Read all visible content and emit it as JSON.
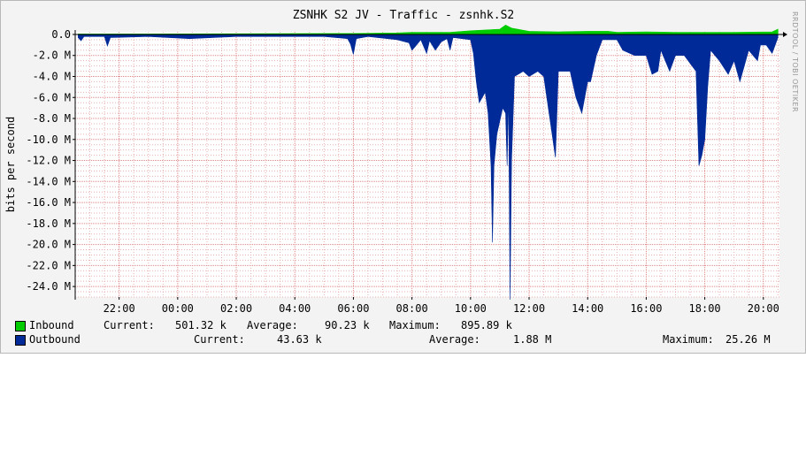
{
  "chart_data": {
    "type": "area",
    "title": "ZSNHK S2 JV - Traffic - zsnhk.S2",
    "ylabel": "bits per second",
    "xlabel": "",
    "y_unit": "M",
    "ylim": [
      -25,
      0.25
    ],
    "y_ticks": [
      {
        "value": 0,
        "label": "0.0"
      },
      {
        "value": -2,
        "label": "-2.0 M"
      },
      {
        "value": -4,
        "label": "-4.0 M"
      },
      {
        "value": -6,
        "label": "-6.0 M"
      },
      {
        "value": -8,
        "label": "-8.0 M"
      },
      {
        "value": -10,
        "label": "-10.0 M"
      },
      {
        "value": -12,
        "label": "-12.0 M"
      },
      {
        "value": -14,
        "label": "-14.0 M"
      },
      {
        "value": -16,
        "label": "-16.0 M"
      },
      {
        "value": -18,
        "label": "-18.0 M"
      },
      {
        "value": -20,
        "label": "-20.0 M"
      },
      {
        "value": -22,
        "label": "-22.0 M"
      },
      {
        "value": -24,
        "label": "-24.0 M"
      }
    ],
    "x_range_hours": [
      20.5,
      44.55
    ],
    "x_ticks": [
      {
        "hour": 22,
        "label": "22:00"
      },
      {
        "hour": 24,
        "label": "00:00"
      },
      {
        "hour": 26,
        "label": "02:00"
      },
      {
        "hour": 28,
        "label": "04:00"
      },
      {
        "hour": 30,
        "label": "06:00"
      },
      {
        "hour": 32,
        "label": "08:00"
      },
      {
        "hour": 34,
        "label": "10:00"
      },
      {
        "hour": 36,
        "label": "12:00"
      },
      {
        "hour": 38,
        "label": "14:00"
      },
      {
        "hour": 40,
        "label": "16:00"
      },
      {
        "hour": 42,
        "label": "18:00"
      },
      {
        "hour": 44,
        "label": "20:00"
      }
    ],
    "grid": true,
    "series": [
      {
        "name": "Inbound",
        "color": "#00cc00",
        "points": [
          [
            20.6,
            0.05
          ],
          [
            23.0,
            0.05
          ],
          [
            30.0,
            0.1
          ],
          [
            31.5,
            0.15
          ],
          [
            32.0,
            0.2
          ],
          [
            33.3,
            0.2
          ],
          [
            34.0,
            0.35
          ],
          [
            35.0,
            0.5
          ],
          [
            35.2,
            0.9
          ],
          [
            35.4,
            0.6
          ],
          [
            36.0,
            0.3
          ],
          [
            37.0,
            0.25
          ],
          [
            38.0,
            0.3
          ],
          [
            38.7,
            0.3
          ],
          [
            39.0,
            0.2
          ],
          [
            40.0,
            0.25
          ],
          [
            41.0,
            0.2
          ],
          [
            42.0,
            0.2
          ],
          [
            43.0,
            0.2
          ],
          [
            44.3,
            0.25
          ],
          [
            44.5,
            0.5
          ]
        ]
      },
      {
        "name": "Outbound",
        "color": "#002a97",
        "points": [
          [
            20.6,
            -0.3
          ],
          [
            20.7,
            -0.6
          ],
          [
            20.8,
            -0.2
          ],
          [
            21.5,
            -0.2
          ],
          [
            21.6,
            -1.1
          ],
          [
            21.7,
            -0.3
          ],
          [
            23.0,
            -0.2
          ],
          [
            24.4,
            -0.4
          ],
          [
            26.0,
            -0.2
          ],
          [
            29.0,
            -0.2
          ],
          [
            29.8,
            -0.4
          ],
          [
            29.9,
            -0.9
          ],
          [
            30.0,
            -1.9
          ],
          [
            30.1,
            -0.4
          ],
          [
            30.5,
            -0.2
          ],
          [
            31.5,
            -0.5
          ],
          [
            31.9,
            -0.8
          ],
          [
            32.0,
            -1.5
          ],
          [
            32.1,
            -1.2
          ],
          [
            32.3,
            -0.5
          ],
          [
            32.5,
            -1.8
          ],
          [
            32.6,
            -0.6
          ],
          [
            32.8,
            -1.5
          ],
          [
            33.0,
            -0.7
          ],
          [
            33.2,
            -0.4
          ],
          [
            33.3,
            -1.5
          ],
          [
            33.4,
            -0.3
          ],
          [
            34.0,
            -0.5
          ],
          [
            34.1,
            -1.8
          ],
          [
            34.2,
            -4.5
          ],
          [
            34.3,
            -6.5
          ],
          [
            34.5,
            -5.5
          ],
          [
            34.6,
            -7.5
          ],
          [
            34.7,
            -12.5
          ],
          [
            34.75,
            -19.8
          ],
          [
            34.8,
            -12.5
          ],
          [
            34.9,
            -9.5
          ],
          [
            35.1,
            -7.0
          ],
          [
            35.2,
            -7.5
          ],
          [
            35.25,
            -12.5
          ],
          [
            35.3,
            -5.5
          ],
          [
            35.35,
            -25.25
          ],
          [
            35.4,
            -12.0
          ],
          [
            35.5,
            -4.0
          ],
          [
            35.8,
            -3.5
          ],
          [
            36.0,
            -4.0
          ],
          [
            36.3,
            -3.5
          ],
          [
            36.5,
            -4.0
          ],
          [
            36.9,
            -11.7
          ],
          [
            37.0,
            -3.5
          ],
          [
            37.4,
            -3.5
          ],
          [
            37.6,
            -6.0
          ],
          [
            37.8,
            -7.5
          ],
          [
            37.9,
            -6.0
          ],
          [
            38.0,
            -4.5
          ],
          [
            38.1,
            -4.5
          ],
          [
            38.3,
            -2.0
          ],
          [
            38.5,
            -0.5
          ],
          [
            39.0,
            -0.5
          ],
          [
            39.2,
            -1.5
          ],
          [
            39.6,
            -2.0
          ],
          [
            40.0,
            -2.0
          ],
          [
            40.2,
            -3.8
          ],
          [
            40.4,
            -3.5
          ],
          [
            40.5,
            -1.5
          ],
          [
            40.8,
            -3.5
          ],
          [
            41.0,
            -2.0
          ],
          [
            41.3,
            -2.0
          ],
          [
            41.7,
            -3.5
          ],
          [
            41.8,
            -12.5
          ],
          [
            41.9,
            -11.5
          ],
          [
            42.0,
            -10.0
          ],
          [
            42.1,
            -5.0
          ],
          [
            42.2,
            -1.5
          ],
          [
            42.5,
            -2.5
          ],
          [
            42.8,
            -3.8
          ],
          [
            43.0,
            -2.5
          ],
          [
            43.2,
            -4.5
          ],
          [
            43.5,
            -1.5
          ],
          [
            43.8,
            -2.5
          ],
          [
            43.9,
            -1.0
          ],
          [
            44.1,
            -1.0
          ],
          [
            44.3,
            -1.8
          ],
          [
            44.5,
            -0.3
          ]
        ]
      }
    ]
  },
  "legend": {
    "inbound": {
      "name": "Inbound",
      "current_label": "Current:",
      "current": "501.32 k",
      "average_label": "Average:",
      "average": "90.23 k",
      "maximum_label": "Maximum:",
      "maximum": "895.89 k"
    },
    "outbound": {
      "name": "Outbound",
      "current_label": "Current:",
      "current": "43.63 k",
      "average_label": "Average:",
      "average": "1.88 M",
      "maximum_label": "Maximum:",
      "maximum": "25.26 M"
    }
  },
  "watermark": "RRDTOOL / TOBI OETIKER"
}
